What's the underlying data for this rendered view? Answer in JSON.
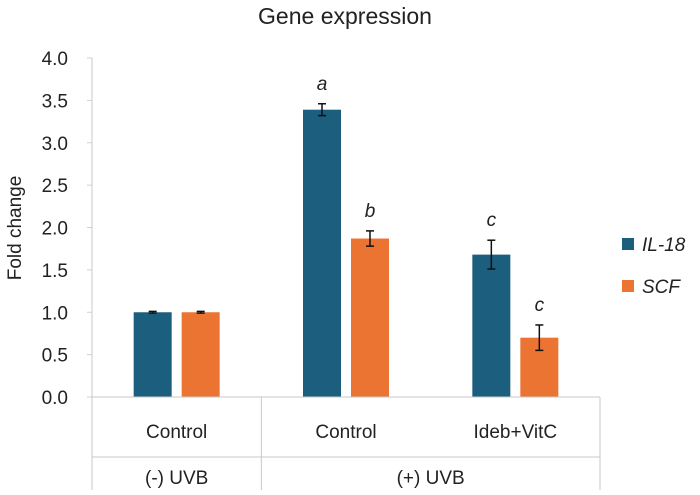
{
  "chart_data": {
    "type": "bar",
    "title": "Gene expression",
    "ylabel": "Fold change",
    "xlabel": "",
    "ylim": [
      0,
      4.0
    ],
    "yticks": [
      "0.0",
      "0.5",
      "1.0",
      "1.5",
      "2.0",
      "2.5",
      "3.0",
      "3.5",
      "4.0"
    ],
    "categories": [
      "Control",
      "Control",
      "Ideb+VitC"
    ],
    "groups": [
      {
        "label": "(-) UVB",
        "categories": [
          0
        ]
      },
      {
        "label": "(+) UVB",
        "categories": [
          1,
          2
        ]
      }
    ],
    "series": [
      {
        "name": "IL-18",
        "color": "#1b5e7e",
        "values": [
          1.0,
          3.39,
          1.68
        ],
        "errors": [
          0.01,
          0.07,
          0.17
        ],
        "labels": [
          "",
          "a",
          "c"
        ]
      },
      {
        "name": "SCF",
        "color": "#ec7433",
        "values": [
          1.0,
          1.87,
          0.7
        ],
        "errors": [
          0.01,
          0.09,
          0.15
        ],
        "labels": [
          "",
          "b",
          "c"
        ]
      }
    ],
    "grid": false,
    "legend_position": "right"
  }
}
